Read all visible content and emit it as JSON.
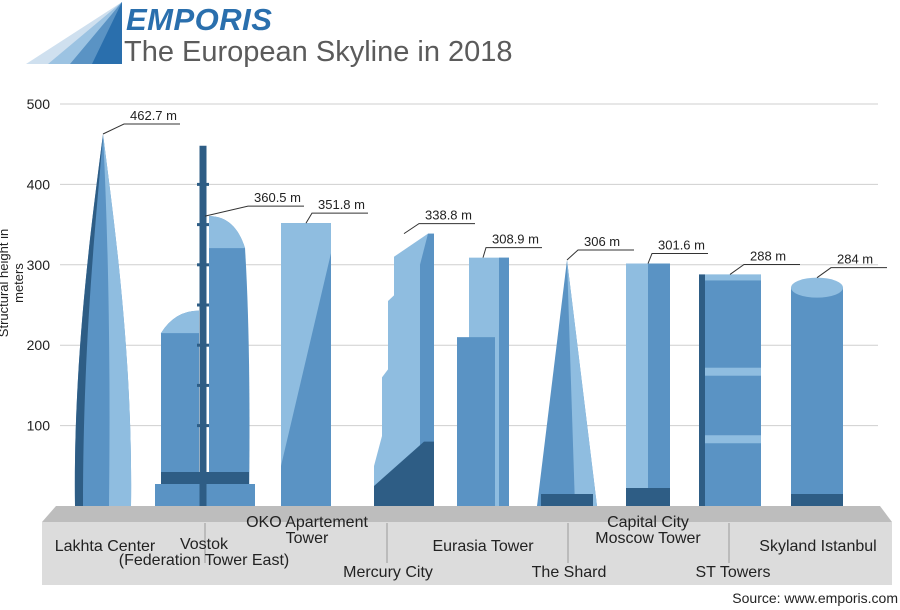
{
  "header": {
    "brand": "EMPORIS",
    "title": "The European Skyline in 2018"
  },
  "footer": {
    "source": "Source: www.emporis.com"
  },
  "colors": {
    "accent": "#2a6fad",
    "building_mid": "#5a93c4",
    "building_light": "#8fbde0",
    "building_dark": "#2e5d85",
    "label_band": "#dcdcdc",
    "grid": "#cfcfcf"
  },
  "chart_data": {
    "type": "bar",
    "title": "The European Skyline in 2018",
    "xlabel": "",
    "ylabel": "Structural height in meters",
    "ylim": [
      0,
      500
    ],
    "yticks": [
      100,
      200,
      300,
      400,
      500
    ],
    "grid": true,
    "categories": [
      "Lakhta Center",
      "Vostok (Federation Tower East)",
      "OKO Apartement Tower",
      "Mercury City",
      "Eurasia Tower",
      "The Shard",
      "Capital City Moscow Tower",
      "ST Towers",
      "Skyland Istanbul"
    ],
    "category_lines": [
      [
        "Lakhta Center"
      ],
      [
        "Vostok",
        "(Federation Tower East)"
      ],
      [
        "OKO Apartement",
        "Tower"
      ],
      [
        "Mercury City"
      ],
      [
        "Eurasia Tower"
      ],
      [
        "The Shard"
      ],
      [
        "Capital City",
        "Moscow Tower"
      ],
      [
        "ST Towers"
      ],
      [
        "Skyland Istanbul"
      ]
    ],
    "values": [
      462.7,
      360.5,
      351.8,
      338.8,
      308.9,
      306,
      301.6,
      288,
      284
    ],
    "value_labels": [
      "462.7 m",
      "360.5 m",
      "351.8 m",
      "338.8 m",
      "308.9 m",
      "306 m",
      "301.6 m",
      "288 m",
      "284 m"
    ]
  }
}
